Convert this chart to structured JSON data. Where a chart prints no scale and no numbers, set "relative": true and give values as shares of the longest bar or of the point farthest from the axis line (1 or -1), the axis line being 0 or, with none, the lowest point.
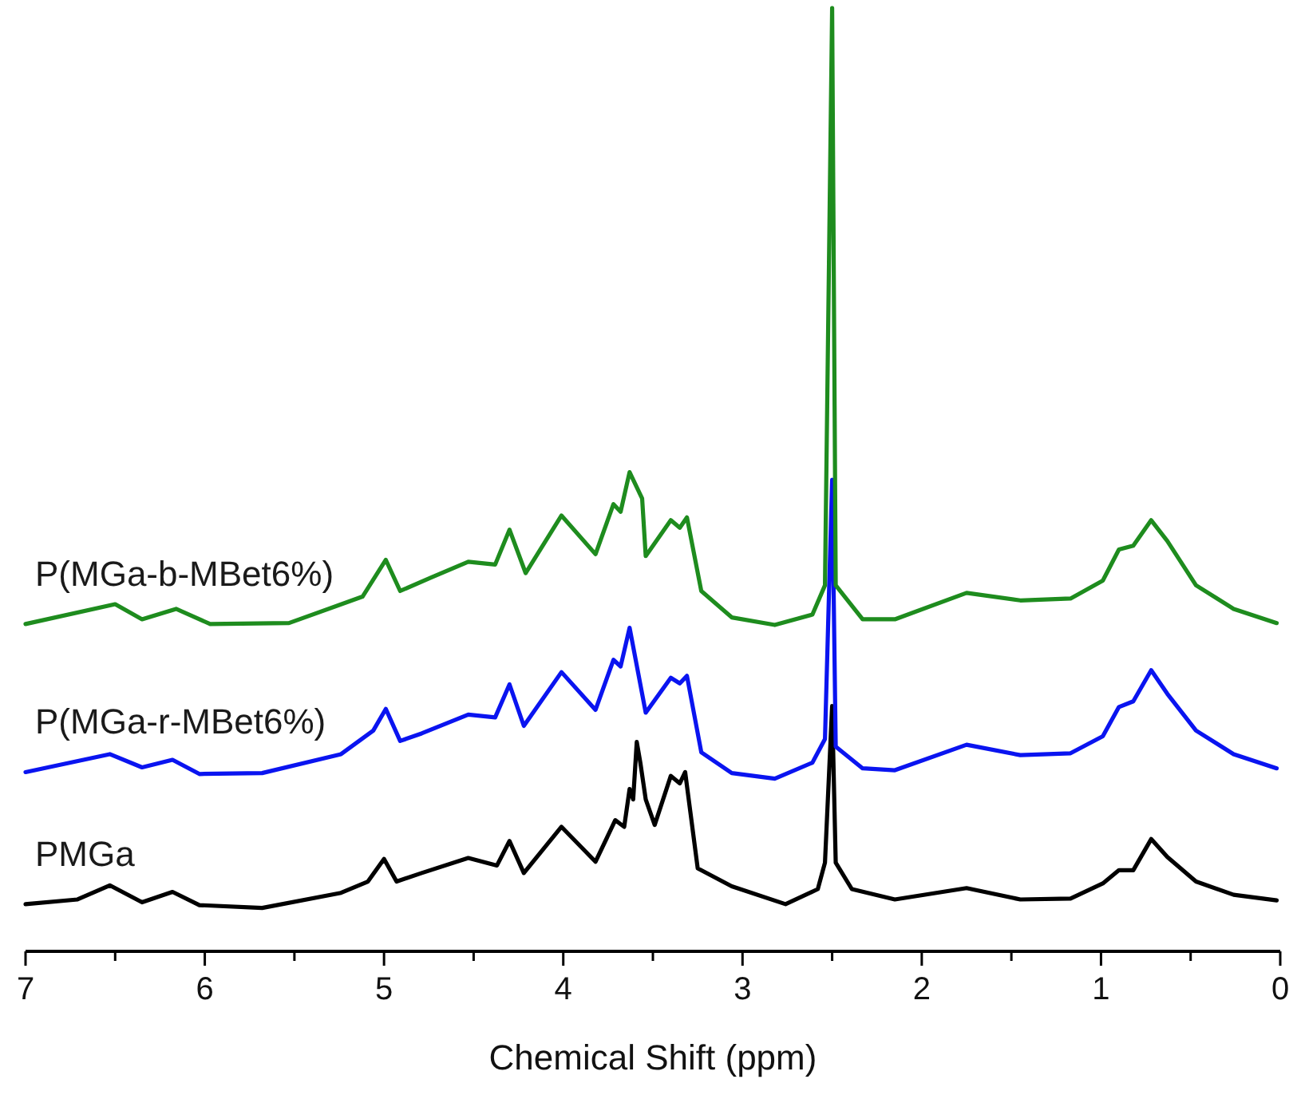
{
  "chart_data": {
    "type": "line",
    "relative": true,
    "xlabel": "Chemical Shift (ppm)",
    "xlim": [
      7,
      0
    ],
    "xticks": [
      7,
      {
        "value": 6.5,
        "label": null
      },
      6,
      {
        "value": 5.5,
        "label": null
      },
      5,
      {
        "value": 4.5,
        "label": null
      },
      4,
      {
        "value": 3.5,
        "label": null
      },
      3,
      {
        "value": 2.5,
        "label": null
      },
      2,
      {
        "value": 1.5,
        "label": null
      },
      1,
      {
        "value": 0.5,
        "label": null
      },
      0
    ],
    "tick_labels": "x",
    "legend": false,
    "series": [
      {
        "name": "P(MGa-b-MBet6%)",
        "color": "#1e8c1e",
        "x": [
          7.0,
          6.5,
          6.35,
          6.16,
          5.97,
          5.53,
          5.12,
          4.99,
          4.91,
          4.74,
          4.53,
          4.38,
          4.3,
          4.21,
          4.01,
          3.82,
          3.72,
          3.68,
          3.63,
          3.56,
          3.54,
          3.4,
          3.35,
          3.31,
          3.23,
          3.06,
          2.82,
          2.61,
          2.54,
          2.5,
          2.48,
          2.33,
          2.15,
          1.75,
          1.45,
          1.17,
          0.99,
          0.9,
          0.82,
          0.72,
          0.63,
          0.47,
          0.26,
          0.02
        ],
        "values": [
          0.347,
          0.368,
          0.352,
          0.363,
          0.347,
          0.348,
          0.376,
          0.415,
          0.382,
          0.396,
          0.413,
          0.41,
          0.447,
          0.401,
          0.462,
          0.421,
          0.474,
          0.466,
          0.508,
          0.48,
          0.419,
          0.457,
          0.449,
          0.46,
          0.382,
          0.354,
          0.346,
          0.357,
          0.388,
          1.0,
          0.388,
          0.352,
          0.352,
          0.38,
          0.372,
          0.374,
          0.393,
          0.426,
          0.43,
          0.457,
          0.435,
          0.388,
          0.363,
          0.348
        ]
      },
      {
        "name": "P(MGa-r-MBet6%)",
        "color": "#0a14f0",
        "x": [
          7.0,
          6.53,
          6.35,
          6.18,
          6.03,
          5.68,
          5.24,
          5.06,
          4.99,
          4.91,
          4.79,
          4.53,
          4.38,
          4.3,
          4.22,
          4.01,
          3.82,
          3.72,
          3.68,
          3.63,
          3.54,
          3.4,
          3.35,
          3.31,
          3.23,
          3.06,
          2.82,
          2.61,
          2.54,
          2.5,
          2.48,
          2.33,
          2.15,
          1.75,
          1.45,
          1.17,
          0.99,
          0.9,
          0.82,
          0.72,
          0.63,
          0.47,
          0.26,
          0.02
        ],
        "values": [
          0.19,
          0.209,
          0.195,
          0.203,
          0.188,
          0.189,
          0.209,
          0.234,
          0.257,
          0.223,
          0.231,
          0.251,
          0.248,
          0.283,
          0.239,
          0.296,
          0.256,
          0.309,
          0.302,
          0.343,
          0.253,
          0.29,
          0.284,
          0.292,
          0.211,
          0.189,
          0.183,
          0.2,
          0.225,
          0.5,
          0.217,
          0.194,
          0.192,
          0.219,
          0.208,
          0.21,
          0.228,
          0.259,
          0.265,
          0.298,
          0.273,
          0.234,
          0.209,
          0.194
        ]
      },
      {
        "name": "PMGa",
        "color": "#000000",
        "x": [
          7.0,
          6.71,
          6.53,
          6.35,
          6.18,
          6.03,
          5.68,
          5.24,
          5.09,
          5.0,
          4.93,
          4.79,
          4.53,
          4.37,
          4.3,
          4.22,
          4.01,
          3.82,
          3.71,
          3.66,
          3.63,
          3.61,
          3.59,
          3.57,
          3.54,
          3.49,
          3.4,
          3.35,
          3.32,
          3.25,
          3.06,
          2.76,
          2.58,
          2.54,
          2.5,
          2.48,
          2.39,
          2.15,
          1.75,
          1.45,
          1.17,
          0.99,
          0.9,
          0.82,
          0.72,
          0.63,
          0.47,
          0.26,
          0.02
        ],
        "values": [
          0.05,
          0.055,
          0.07,
          0.052,
          0.063,
          0.049,
          0.046,
          0.062,
          0.074,
          0.098,
          0.074,
          0.083,
          0.099,
          0.091,
          0.117,
          0.083,
          0.132,
          0.095,
          0.139,
          0.132,
          0.172,
          0.161,
          0.222,
          0.2,
          0.161,
          0.134,
          0.186,
          0.178,
          0.19,
          0.088,
          0.069,
          0.05,
          0.066,
          0.094,
          0.26,
          0.094,
          0.066,
          0.055,
          0.067,
          0.055,
          0.056,
          0.072,
          0.086,
          0.086,
          0.119,
          0.1,
          0.074,
          0.06,
          0.054
        ]
      }
    ]
  }
}
